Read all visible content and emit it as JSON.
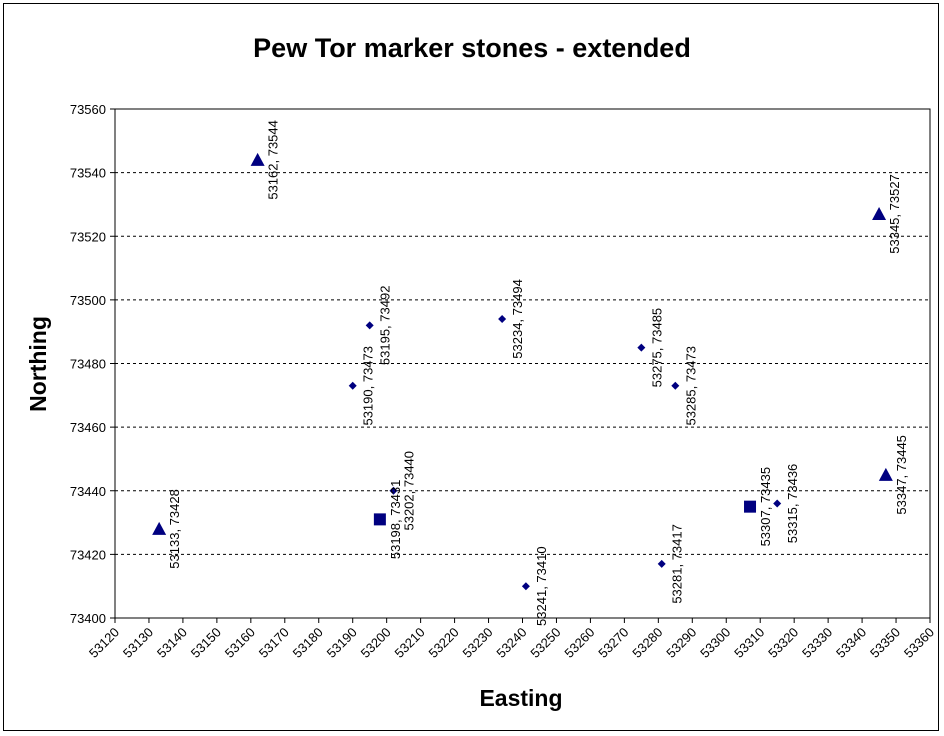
{
  "chart_data": {
    "type": "scatter",
    "title": "Pew Tor marker stones - extended",
    "xlabel": "Easting",
    "ylabel": "Northing",
    "xlim": [
      53120,
      53360
    ],
    "ylim": [
      73400,
      73560
    ],
    "xticks": [
      53120,
      53130,
      53140,
      53150,
      53160,
      53170,
      53180,
      53190,
      53200,
      53210,
      53220,
      53230,
      53240,
      53250,
      53260,
      53270,
      53280,
      53290,
      53300,
      53310,
      53320,
      53330,
      53340,
      53350,
      53360
    ],
    "yticks": [
      73400,
      73420,
      73440,
      73460,
      73480,
      73500,
      73520,
      73540,
      73560
    ],
    "grid": "horizontal dashed",
    "legend": "none",
    "marker_color": "#000080",
    "series": [
      {
        "marker": "diamond",
        "points": [
          {
            "x": 53190,
            "y": 73473,
            "label": "53190, 73473"
          },
          {
            "x": 53195,
            "y": 73492,
            "label": "53195, 73492"
          },
          {
            "x": 53202,
            "y": 73440,
            "label": "53202, 73440"
          },
          {
            "x": 53234,
            "y": 73494,
            "label": "53234, 73494"
          },
          {
            "x": 53241,
            "y": 73410,
            "label": "53241, 73410"
          },
          {
            "x": 53275,
            "y": 73485,
            "label": "53275, 73485"
          },
          {
            "x": 53281,
            "y": 73417,
            "label": "53281, 73417"
          },
          {
            "x": 53285,
            "y": 73473,
            "label": "53285, 73473"
          },
          {
            "x": 53315,
            "y": 73436,
            "label": "53315, 73436"
          }
        ]
      },
      {
        "marker": "square",
        "points": [
          {
            "x": 53198,
            "y": 73431,
            "label": "53198, 73431"
          },
          {
            "x": 53307,
            "y": 73435,
            "label": "53307, 73435"
          }
        ]
      },
      {
        "marker": "triangle",
        "points": [
          {
            "x": 53133,
            "y": 73428,
            "label": "53133, 73428"
          },
          {
            "x": 53162,
            "y": 73544,
            "label": "53162, 73544"
          },
          {
            "x": 53345,
            "y": 73527,
            "label": "53345, 73527"
          },
          {
            "x": 53347,
            "y": 73445,
            "label": "53347, 73445"
          }
        ]
      }
    ]
  }
}
